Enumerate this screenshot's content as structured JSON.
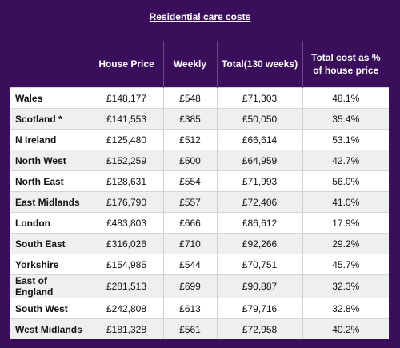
{
  "title": "Residential care costs",
  "columns": [
    "",
    "House Price",
    "Weekly",
    "Total(130 weeks)",
    "Total cost as % of house price"
  ],
  "rows": [
    [
      "Wales",
      "£148,177",
      "£548",
      "£71,303",
      "48.1%"
    ],
    [
      "Scotland *",
      "£141,553",
      "£385",
      "£50,050",
      "35.4%"
    ],
    [
      "N Ireland",
      "£125,480",
      "£512",
      "£66,614",
      "53.1%"
    ],
    [
      "North West",
      "£152,259",
      "£500",
      "£64,959",
      "42.7%"
    ],
    [
      "North East",
      "£128,631",
      "£554",
      "£71,993",
      "56.0%"
    ],
    [
      "East Midlands",
      "£176,790",
      "£557",
      "£72,406",
      "41.0%"
    ],
    [
      "London",
      "£483,803",
      "£666",
      "£86,612",
      "17.9%"
    ],
    [
      "South East",
      "£316,026",
      "£710",
      "£92,266",
      "29.2%"
    ],
    [
      "Yorkshire",
      "£154,985",
      "£544",
      "£70,751",
      "45.7%"
    ],
    [
      "East of England",
      "£281,513",
      "£699",
      "£90,887",
      "32.3%"
    ],
    [
      "South West",
      "£242,808",
      "£613",
      "£79,716",
      "32.8%"
    ],
    [
      "West Midlands",
      "£181,328",
      "£561",
      "£72,958",
      "40.2%"
    ]
  ]
}
